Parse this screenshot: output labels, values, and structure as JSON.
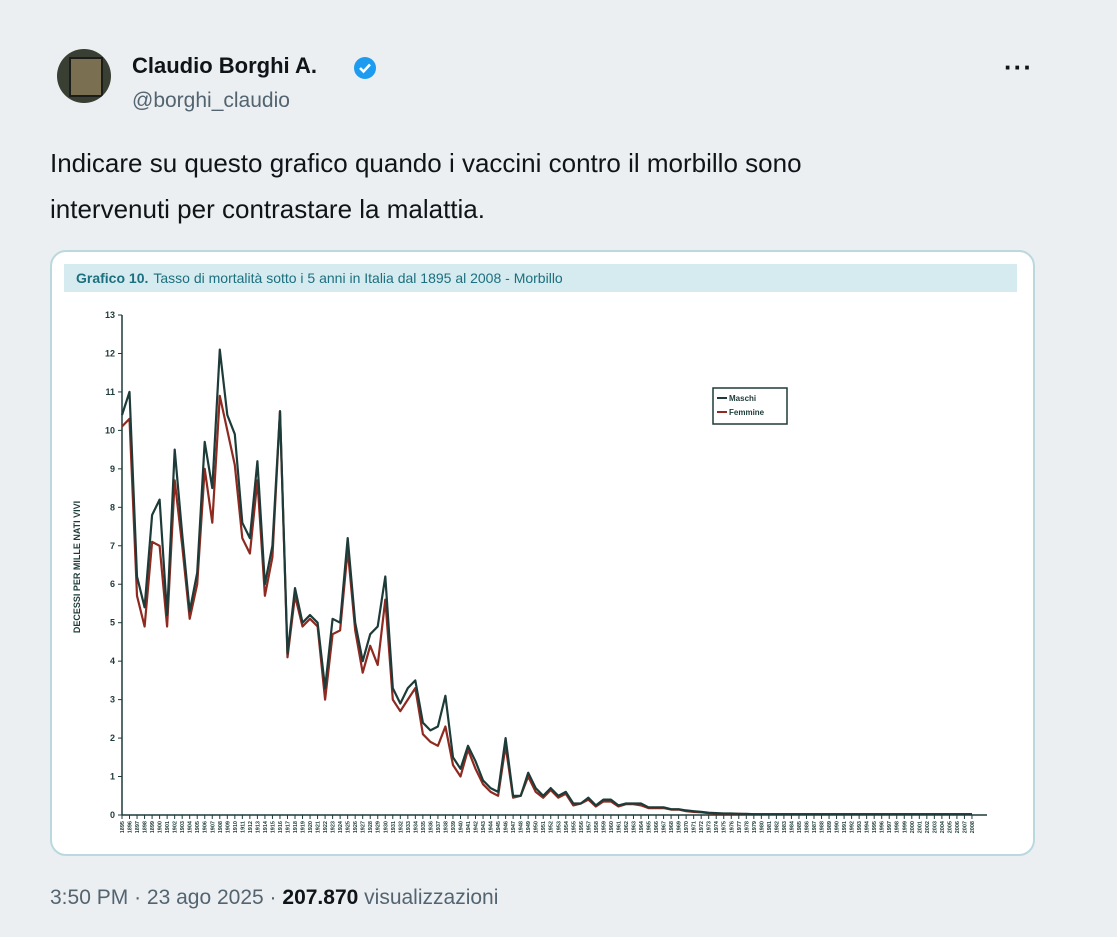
{
  "author": {
    "name": "Claudio Borghi A.",
    "handle": "@borghi_claudio"
  },
  "text_lines": [
    "Indicare su questo grafico quando i vaccini contro il morbillo sono",
    "intervenuti per contrastare la malattia."
  ],
  "footer": {
    "time": "3:50 PM",
    "separator": "·",
    "date": "23 ago 2025",
    "views": "207.870",
    "views_label": "visualizzazioni"
  },
  "chart_data": {
    "type": "line",
    "title_prefix": "Grafico 10.",
    "title": "Tasso di mortalità sotto i 5 anni in Italia dal 1895 al 2008 - Morbillo",
    "ylabel": "DECESSI PER MILLE NATI VIVI",
    "x": [
      1895,
      1896,
      1897,
      1898,
      1899,
      1900,
      1901,
      1902,
      1903,
      1904,
      1905,
      1906,
      1907,
      1908,
      1909,
      1910,
      1911,
      1912,
      1913,
      1914,
      1915,
      1916,
      1917,
      1918,
      1919,
      1920,
      1921,
      1922,
      1923,
      1924,
      1925,
      1926,
      1927,
      1928,
      1929,
      1930,
      1931,
      1932,
      1933,
      1934,
      1935,
      1936,
      1937,
      1938,
      1939,
      1940,
      1941,
      1942,
      1943,
      1944,
      1945,
      1946,
      1947,
      1948,
      1949,
      1950,
      1951,
      1952,
      1953,
      1954,
      1955,
      1956,
      1957,
      1958,
      1959,
      1960,
      1961,
      1962,
      1963,
      1964,
      1965,
      1966,
      1967,
      1968,
      1969,
      1970,
      1971,
      1972,
      1973,
      1974,
      1975,
      1976,
      1977,
      1978,
      1979,
      1980,
      1981,
      1982,
      1983,
      1984,
      1985,
      1986,
      1987,
      1988,
      1989,
      1990,
      1991,
      1992,
      1993,
      1994,
      1995,
      1996,
      1997,
      1998,
      1999,
      2000,
      2001,
      2002,
      2003,
      2004,
      2005,
      2006,
      2007,
      2008
    ],
    "series": [
      {
        "name": "Maschi",
        "color": "#1d3b38",
        "values": [
          10.4,
          11.0,
          6.2,
          5.4,
          7.8,
          8.2,
          5.2,
          9.5,
          7.3,
          5.3,
          6.3,
          9.7,
          8.5,
          12.1,
          10.4,
          9.9,
          7.6,
          7.2,
          9.2,
          6.0,
          7.0,
          10.5,
          4.2,
          5.9,
          5.0,
          5.2,
          5.0,
          3.3,
          5.1,
          5.0,
          7.2,
          5.0,
          4.0,
          4.7,
          4.9,
          6.2,
          3.3,
          2.9,
          3.3,
          3.5,
          2.4,
          2.2,
          2.3,
          3.1,
          1.5,
          1.2,
          1.8,
          1.4,
          0.9,
          0.7,
          0.6,
          2.0,
          0.5,
          0.5,
          1.1,
          0.7,
          0.5,
          0.7,
          0.5,
          0.6,
          0.3,
          0.3,
          0.45,
          0.25,
          0.4,
          0.4,
          0.25,
          0.3,
          0.3,
          0.3,
          0.2,
          0.2,
          0.2,
          0.15,
          0.15,
          0.12,
          0.1,
          0.08,
          0.06,
          0.05,
          0.04,
          0.04,
          0.03,
          0.03,
          0.02,
          0.02,
          0.02,
          0.02,
          0.02,
          0.02,
          0.02,
          0.02,
          0.02,
          0.02,
          0.02,
          0.02,
          0.02,
          0.02,
          0.02,
          0.02,
          0.02,
          0.02,
          0.02,
          0.02,
          0.02,
          0.02,
          0.02,
          0.02,
          0.02,
          0.02,
          0.02,
          0.02,
          0.02,
          0.02
        ]
      },
      {
        "name": "Femmine",
        "color": "#8e2a20",
        "values": [
          10.1,
          10.3,
          5.7,
          4.9,
          7.1,
          7.0,
          4.9,
          8.7,
          7.0,
          5.1,
          6.0,
          9.0,
          7.6,
          10.9,
          10.0,
          9.1,
          7.2,
          6.8,
          8.7,
          5.7,
          6.7,
          10.5,
          4.1,
          5.7,
          4.9,
          5.1,
          4.9,
          3.0,
          4.7,
          4.8,
          6.9,
          4.8,
          3.7,
          4.4,
          3.9,
          5.6,
          3.0,
          2.7,
          3.0,
          3.3,
          2.1,
          1.9,
          1.8,
          2.3,
          1.3,
          1.0,
          1.7,
          1.2,
          0.8,
          0.6,
          0.5,
          1.8,
          0.45,
          0.5,
          1.0,
          0.6,
          0.45,
          0.65,
          0.45,
          0.55,
          0.25,
          0.3,
          0.4,
          0.22,
          0.35,
          0.35,
          0.22,
          0.28,
          0.28,
          0.25,
          0.18,
          0.18,
          0.18,
          0.14,
          0.14,
          0.1,
          0.08,
          0.07,
          0.05,
          0.04,
          0.03,
          0.03,
          0.03,
          0.02,
          0.02,
          0.02,
          0.02,
          0.02,
          0.02,
          0.02,
          0.02,
          0.02,
          0.02,
          0.02,
          0.02,
          0.02,
          0.02,
          0.02,
          0.02,
          0.02,
          0.02,
          0.02,
          0.02,
          0.02,
          0.02,
          0.02,
          0.02,
          0.02,
          0.02,
          0.02,
          0.02,
          0.02,
          0.02,
          0.02
        ]
      }
    ],
    "xlim": [
      1895,
      2010
    ],
    "ylim": [
      0,
      13
    ],
    "yticks": [
      0,
      1,
      2,
      3,
      4,
      5,
      6,
      7,
      8,
      9,
      10,
      11,
      12,
      13
    ]
  }
}
